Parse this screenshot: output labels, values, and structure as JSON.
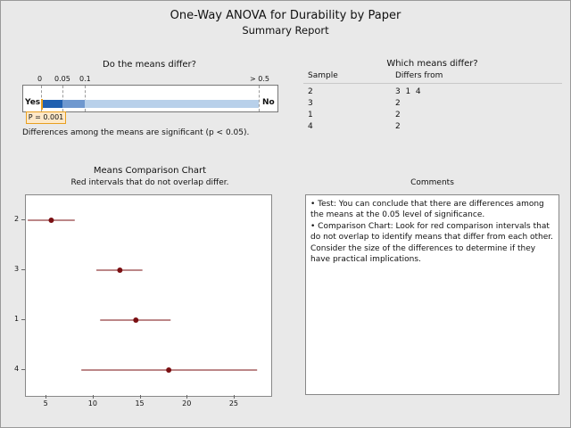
{
  "header": {
    "title": "One-Way ANOVA for Durability by Paper",
    "subtitle": "Summary Report"
  },
  "means_differ": {
    "title": "Do the means differ?",
    "ticks": [
      "0",
      "0.05",
      "0.1",
      "> 0.5"
    ],
    "yes_label": "Yes",
    "no_label": "No",
    "p_label": "P = 0.001",
    "p_value": 0.001,
    "conclusion": "Differences among the means are significant (p < 0.05)."
  },
  "which_differ": {
    "title": "Which means differ?",
    "col_sample": "Sample",
    "col_differs": "Differs from",
    "rows": [
      {
        "sample": "2",
        "differs": "3  1  4"
      },
      {
        "sample": "3",
        "differs": "2"
      },
      {
        "sample": "1",
        "differs": "2"
      },
      {
        "sample": "4",
        "differs": "2"
      }
    ]
  },
  "means_chart": {
    "title": "Means Comparison Chart",
    "subtitle": "Red intervals that do not overlap differ."
  },
  "chart_data": {
    "type": "scatter",
    "title": "Means Comparison Chart",
    "subtitle": "Red intervals that do not overlap differ.",
    "categories": [
      "2",
      "3",
      "1",
      "4"
    ],
    "means": [
      5.5,
      12.8,
      14.5,
      18.0
    ],
    "lower": [
      3.0,
      10.3,
      10.7,
      8.7
    ],
    "upper": [
      8.0,
      15.2,
      18.2,
      27.4
    ],
    "x_ticks": [
      5,
      10,
      15,
      20,
      25
    ],
    "xlim": [
      2.8,
      28.9
    ],
    "color": "#7a0f12"
  },
  "comments": {
    "title": "Comments",
    "line1": "• Test: You can conclude that there are differences among the means at the 0.05 level of significance.",
    "line2": "• Comparison Chart: Look for red comparison intervals that do not overlap to identify means that differ from each other. Consider the size of the differences to determine if they have practical implications."
  },
  "colors": {
    "background": "#e9e9e9",
    "bar_dark": "#2060b0",
    "bar_light": "#b8d0ea",
    "p_marker": "#e8a020",
    "interval": "#7a0f12"
  }
}
